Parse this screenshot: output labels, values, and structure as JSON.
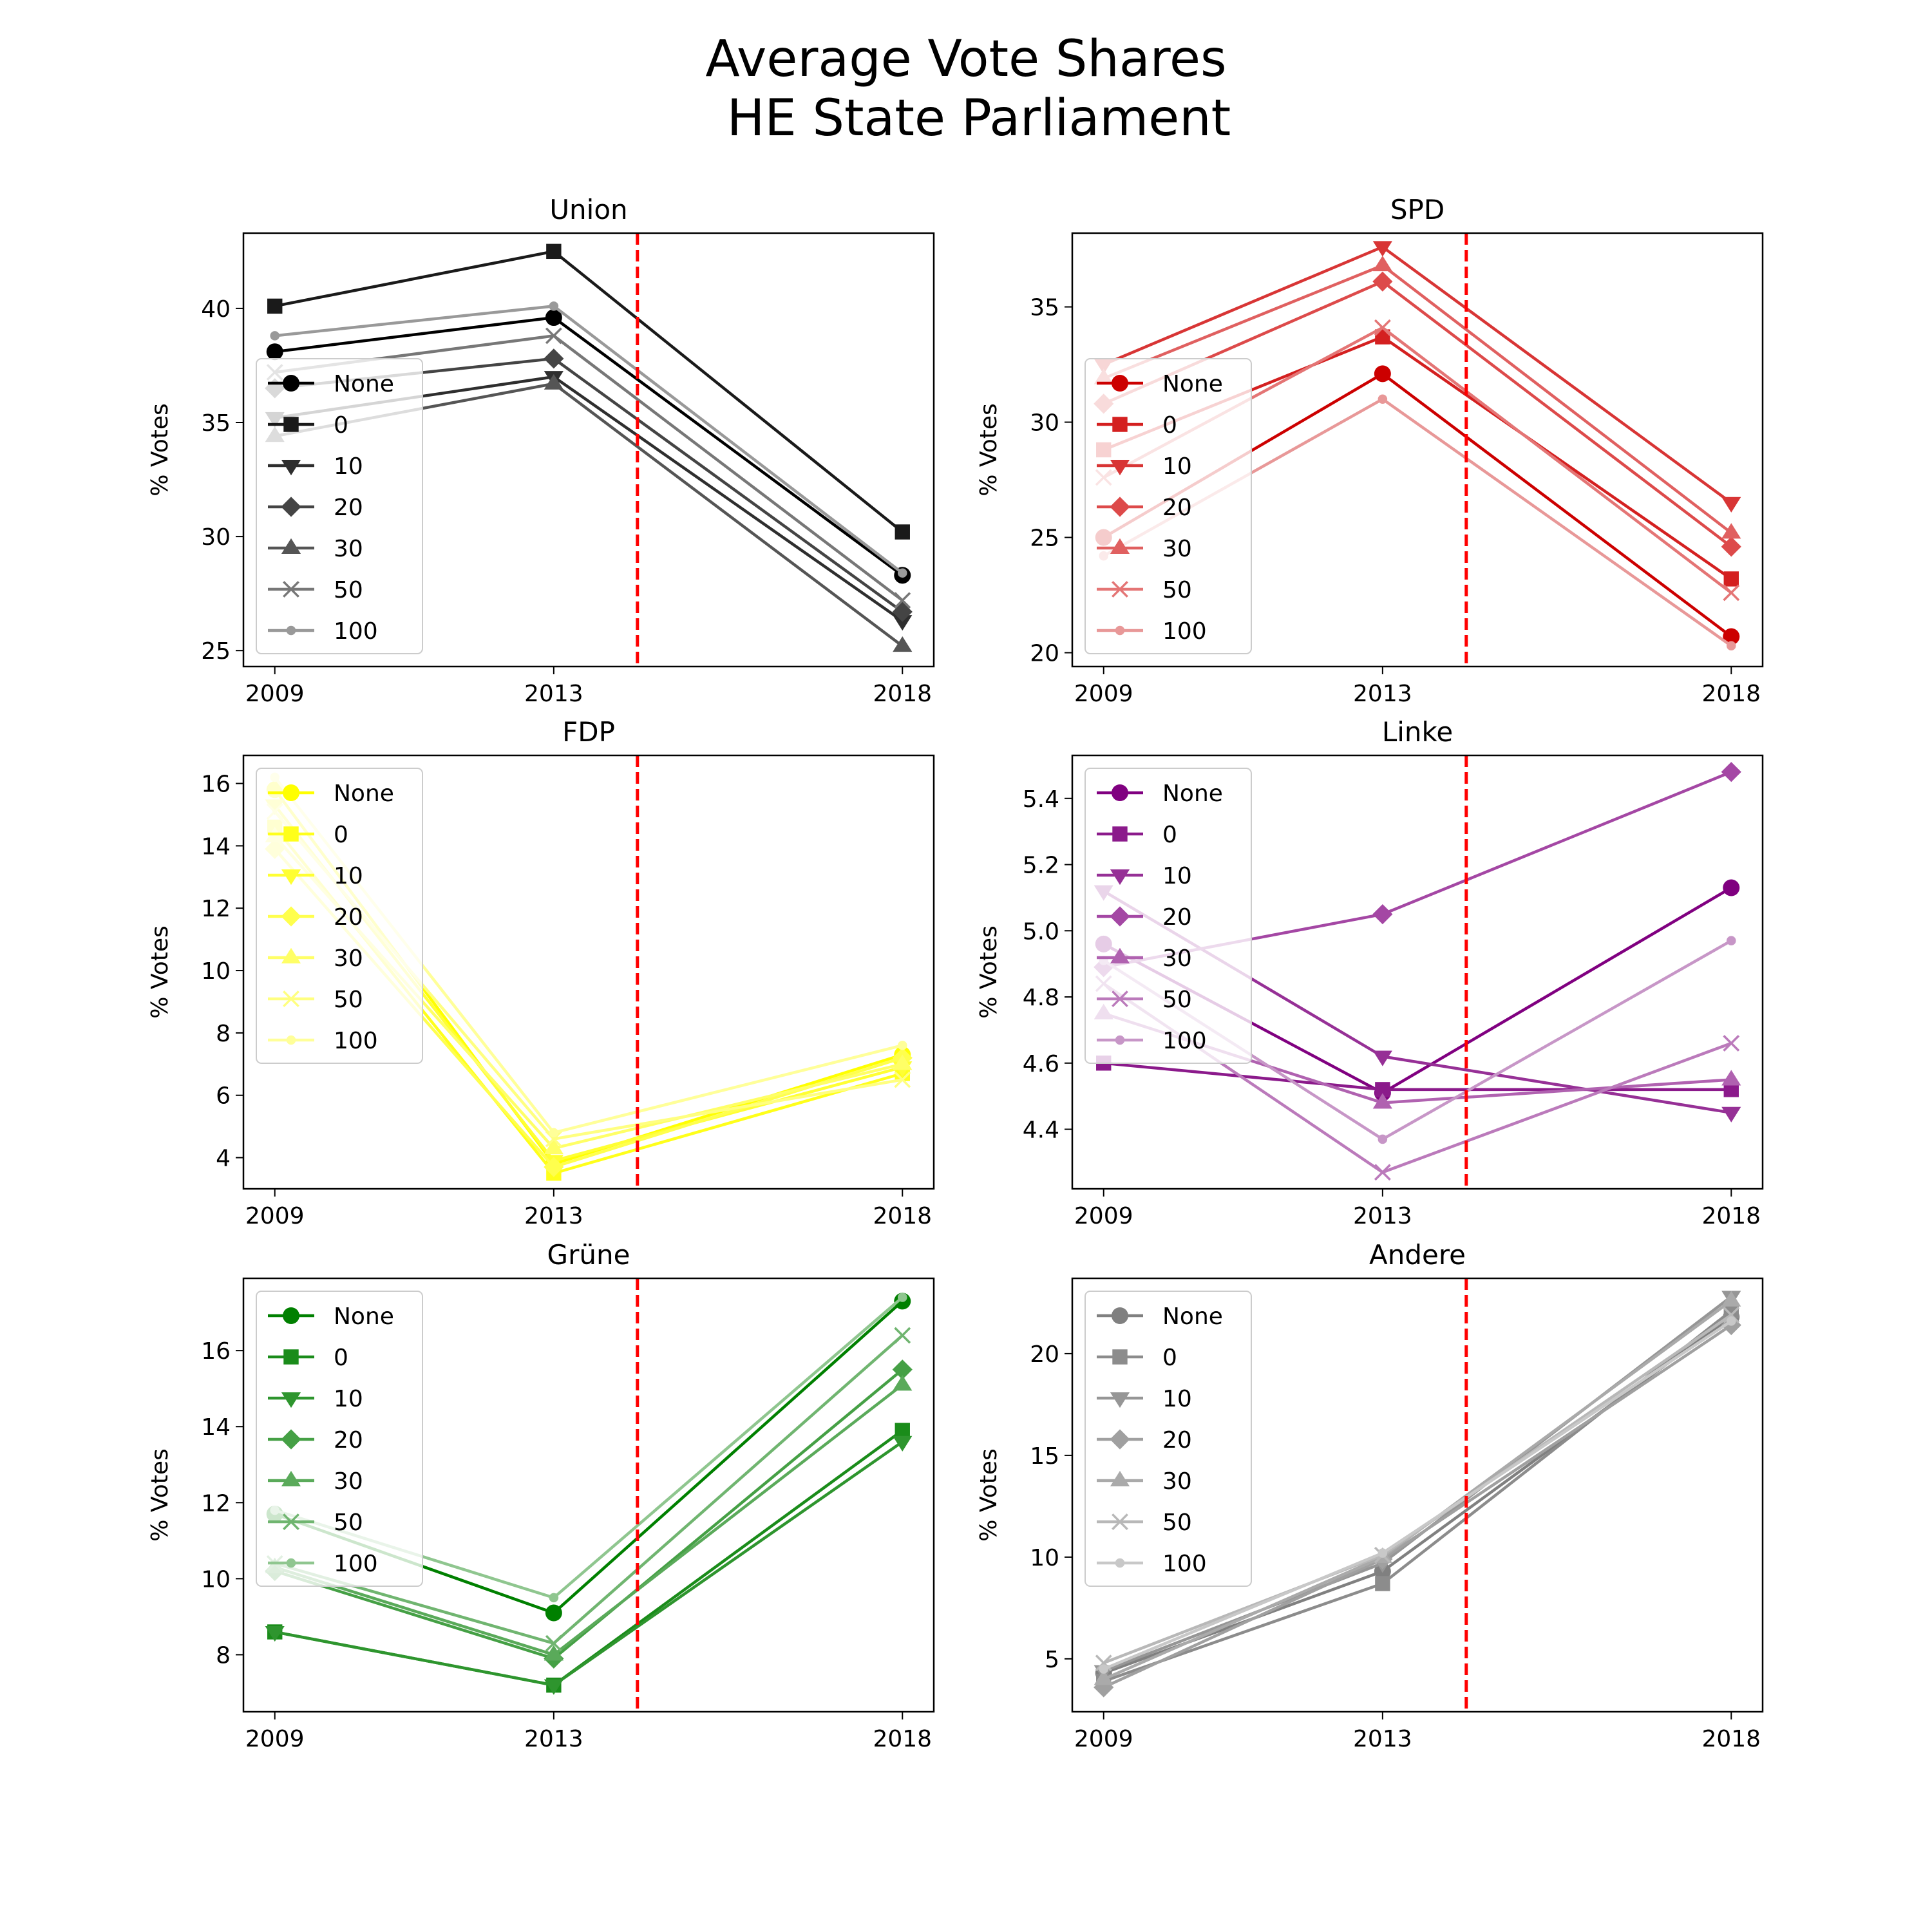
{
  "title_line1": "Average Vote Shares",
  "title_line2": "HE State Parliament",
  "chart_data": [
    {
      "type": "line",
      "title": "Union",
      "ylabel": "% Votes",
      "x": [
        2009,
        2013,
        2018
      ],
      "xticks": [
        "2009",
        "2013",
        "2018"
      ],
      "ylim": [
        24.3,
        43.3
      ],
      "yticks": [
        25,
        30,
        35,
        40
      ],
      "vline": 2014.2,
      "vline_color": "#ff0000",
      "legend": {
        "position": "lower-left"
      },
      "series": [
        {
          "name": "None",
          "color": "#000000",
          "marker": "circle",
          "values": [
            38.1,
            39.6,
            28.3
          ]
        },
        {
          "name": "0",
          "color": "#1a1a1a",
          "marker": "square",
          "values": [
            40.1,
            42.5,
            30.2
          ]
        },
        {
          "name": "10",
          "color": "#2e2e2e",
          "marker": "tri-down",
          "values": [
            35.2,
            37.0,
            26.3
          ]
        },
        {
          "name": "20",
          "color": "#444444",
          "marker": "diamond",
          "values": [
            36.5,
            37.8,
            26.7
          ]
        },
        {
          "name": "30",
          "color": "#555555",
          "marker": "tri-up",
          "values": [
            34.4,
            36.7,
            25.2
          ]
        },
        {
          "name": "50",
          "color": "#777777",
          "marker": "x",
          "values": [
            37.2,
            38.8,
            27.2
          ]
        },
        {
          "name": "100",
          "color": "#999999",
          "marker": "dot",
          "values": [
            38.8,
            40.1,
            28.4
          ]
        }
      ]
    },
    {
      "type": "line",
      "title": "SPD",
      "ylabel": "% Votes",
      "x": [
        2009,
        2013,
        2018
      ],
      "xticks": [
        "2009",
        "2013",
        "2018"
      ],
      "ylim": [
        19.4,
        38.2
      ],
      "yticks": [
        20,
        25,
        30,
        35
      ],
      "vline": 2014.2,
      "vline_color": "#ff0000",
      "legend": {
        "position": "lower-left"
      },
      "series": [
        {
          "name": "None",
          "color": "#cc0000",
          "marker": "circle",
          "values": [
            25.0,
            32.1,
            20.7
          ]
        },
        {
          "name": "0",
          "color": "#d42020",
          "marker": "square",
          "values": [
            28.8,
            33.7,
            23.2
          ]
        },
        {
          "name": "10",
          "color": "#d83535",
          "marker": "tri-down",
          "values": [
            32.5,
            37.6,
            26.5
          ]
        },
        {
          "name": "20",
          "color": "#dd4a4a",
          "marker": "diamond",
          "values": [
            30.8,
            36.1,
            24.6
          ]
        },
        {
          "name": "30",
          "color": "#e06060",
          "marker": "tri-up",
          "values": [
            31.9,
            36.8,
            25.2
          ]
        },
        {
          "name": "50",
          "color": "#e47575",
          "marker": "x",
          "values": [
            27.6,
            34.1,
            22.6
          ]
        },
        {
          "name": "100",
          "color": "#e89898",
          "marker": "dot",
          "values": [
            24.2,
            31.0,
            20.3
          ]
        }
      ]
    },
    {
      "type": "line",
      "title": "FDP",
      "ylabel": "% Votes",
      "x": [
        2009,
        2013,
        2018
      ],
      "xticks": [
        "2009",
        "2013",
        "2018"
      ],
      "ylim": [
        3.0,
        16.9
      ],
      "yticks": [
        4,
        6,
        8,
        10,
        12,
        14,
        16
      ],
      "vline": 2014.2,
      "vline_color": "#ff0000",
      "legend": {
        "position": "upper-left"
      },
      "series": [
        {
          "name": "None",
          "color": "#ffff00",
          "marker": "circle",
          "values": [
            15.8,
            3.8,
            7.3
          ]
        },
        {
          "name": "0",
          "color": "#ffff1a",
          "marker": "square",
          "values": [
            14.6,
            3.5,
            6.7
          ]
        },
        {
          "name": "10",
          "color": "#ffff33",
          "marker": "tri-down",
          "values": [
            15.3,
            3.9,
            6.9
          ]
        },
        {
          "name": "20",
          "color": "#ffff4d",
          "marker": "diamond",
          "values": [
            13.9,
            3.7,
            7.2
          ]
        },
        {
          "name": "30",
          "color": "#ffff66",
          "marker": "tri-up",
          "values": [
            14.3,
            4.3,
            7.0
          ]
        },
        {
          "name": "50",
          "color": "#ffff80",
          "marker": "x",
          "values": [
            15.1,
            4.6,
            6.5
          ]
        },
        {
          "name": "100",
          "color": "#ffff99",
          "marker": "dot",
          "values": [
            16.2,
            4.8,
            7.6
          ]
        }
      ]
    },
    {
      "type": "line",
      "title": "Linke",
      "ylabel": "% Votes",
      "x": [
        2009,
        2013,
        2018
      ],
      "xticks": [
        "2009",
        "2013",
        "2018"
      ],
      "ylim": [
        4.22,
        5.53
      ],
      "yticks": [
        4.4,
        4.6,
        4.8,
        5.0,
        5.2,
        5.4
      ],
      "vline": 2014.2,
      "vline_color": "#ff0000",
      "legend": {
        "position": "upper-left"
      },
      "series": [
        {
          "name": "None",
          "color": "#800080",
          "marker": "circle",
          "values": [
            4.96,
            4.51,
            5.13
          ]
        },
        {
          "name": "0",
          "color": "#8b1a8b",
          "marker": "square",
          "values": [
            4.6,
            4.52,
            4.52
          ]
        },
        {
          "name": "10",
          "color": "#963096",
          "marker": "tri-down",
          "values": [
            5.12,
            4.62,
            4.45
          ]
        },
        {
          "name": "20",
          "color": "#a447a4",
          "marker": "diamond",
          "values": [
            4.89,
            5.05,
            5.48
          ]
        },
        {
          "name": "30",
          "color": "#b062b0",
          "marker": "tri-up",
          "values": [
            4.75,
            4.48,
            4.55
          ]
        },
        {
          "name": "50",
          "color": "#bb7abb",
          "marker": "x",
          "values": [
            4.84,
            4.27,
            4.66
          ]
        },
        {
          "name": "100",
          "color": "#c796c7",
          "marker": "dot",
          "values": [
            4.91,
            4.37,
            4.97
          ]
        }
      ]
    },
    {
      "type": "line",
      "title": "Grüne",
      "ylabel": "% Votes",
      "x": [
        2009,
        2013,
        2018
      ],
      "xticks": [
        "2009",
        "2013",
        "2018"
      ],
      "ylim": [
        6.5,
        17.9
      ],
      "yticks": [
        8,
        10,
        12,
        14,
        16
      ],
      "vline": 2014.2,
      "vline_color": "#ff0000",
      "legend": {
        "position": "upper-left"
      },
      "series": [
        {
          "name": "None",
          "color": "#008000",
          "marker": "circle",
          "values": [
            11.7,
            9.1,
            17.3
          ]
        },
        {
          "name": "0",
          "color": "#1a8c1a",
          "marker": "square",
          "values": [
            8.6,
            7.2,
            13.9
          ]
        },
        {
          "name": "10",
          "color": "#2e952e",
          "marker": "tri-down",
          "values": [
            8.6,
            7.2,
            13.6
          ]
        },
        {
          "name": "20",
          "color": "#45a045",
          "marker": "diamond",
          "values": [
            10.2,
            7.9,
            15.5
          ]
        },
        {
          "name": "30",
          "color": "#5aaa5a",
          "marker": "tri-up",
          "values": [
            10.3,
            8.0,
            15.1
          ]
        },
        {
          "name": "50",
          "color": "#70b570",
          "marker": "x",
          "values": [
            10.4,
            8.3,
            16.4
          ]
        },
        {
          "name": "100",
          "color": "#8fc68f",
          "marker": "dot",
          "values": [
            11.8,
            9.5,
            17.4
          ]
        }
      ]
    },
    {
      "type": "line",
      "title": "Andere",
      "ylabel": "% Votes",
      "x": [
        2009,
        2013,
        2018
      ],
      "xticks": [
        "2009",
        "2013",
        "2018"
      ],
      "ylim": [
        2.4,
        23.7
      ],
      "yticks": [
        5,
        10,
        15,
        20
      ],
      "vline": 2014.2,
      "vline_color": "#ff0000",
      "legend": {
        "position": "upper-left"
      },
      "series": [
        {
          "name": "None",
          "color": "#808080",
          "marker": "circle",
          "values": [
            4.3,
            9.3,
            21.8
          ]
        },
        {
          "name": "0",
          "color": "#8c8c8c",
          "marker": "square",
          "values": [
            3.9,
            8.7,
            22.1
          ]
        },
        {
          "name": "10",
          "color": "#969696",
          "marker": "tri-down",
          "values": [
            4.4,
            9.7,
            22.8
          ]
        },
        {
          "name": "20",
          "color": "#a0a0a0",
          "marker": "diamond",
          "values": [
            3.6,
            9.9,
            21.4
          ]
        },
        {
          "name": "30",
          "color": "#aaaaaa",
          "marker": "tri-up",
          "values": [
            4.0,
            10.0,
            22.6
          ]
        },
        {
          "name": "50",
          "color": "#b8b8b8",
          "marker": "x",
          "values": [
            4.8,
            10.1,
            21.9
          ]
        },
        {
          "name": "100",
          "color": "#c8c8c8",
          "marker": "dot",
          "values": [
            4.5,
            10.2,
            21.6
          ]
        }
      ]
    }
  ]
}
